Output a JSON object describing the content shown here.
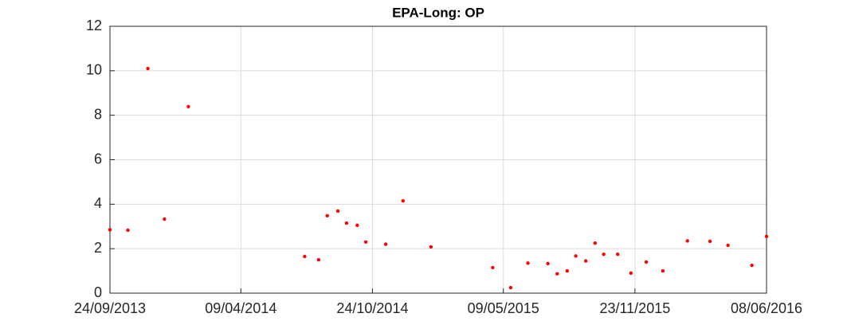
{
  "chart_data": {
    "type": "scatter",
    "title": "EPA-Long: OP",
    "series": [
      {
        "color": "#ff0000",
        "x": [
          "24/09/2013",
          "21/10/2013",
          "20/11/2013",
          "15/12/2013",
          "20/01/2014",
          "14/07/2014",
          "04/08/2014",
          "17/08/2014",
          "02/09/2014",
          "15/09/2014",
          "01/10/2014",
          "14/10/2014",
          "13/11/2014",
          "09/12/2014",
          "20/01/2015",
          "23/04/2015",
          "20/05/2015",
          "15/06/2015",
          "15/07/2015",
          "29/07/2015",
          "13/08/2015",
          "26/08/2015",
          "10/09/2015",
          "24/09/2015",
          "07/10/2015",
          "28/10/2015",
          "17/11/2015",
          "10/12/2015",
          "04/01/2016",
          "10/02/2016",
          "15/03/2016",
          "11/04/2016",
          "17/05/2016",
          "08/06/2016"
        ],
        "values": [
          2.85,
          2.83,
          10.1,
          3.33,
          8.39,
          1.65,
          1.5,
          3.48,
          3.69,
          3.15,
          3.05,
          2.3,
          2.2,
          4.15,
          2.08,
          1.15,
          0.25,
          1.35,
          1.33,
          0.87,
          1.0,
          1.67,
          1.45,
          2.25,
          1.75,
          1.75,
          0.9,
          1.4,
          1.0,
          2.35,
          2.33,
          2.15,
          1.25,
          2.55
        ]
      }
    ],
    "xlim": [
      "24/09/2013",
      "08/06/2016"
    ],
    "xticks": [
      "24/09/2013",
      "09/04/2014",
      "24/10/2014",
      "09/05/2015",
      "23/11/2015",
      "08/06/2016"
    ],
    "ylim": [
      0,
      12
    ],
    "yticks": [
      0,
      2,
      4,
      6,
      8,
      10,
      12
    ],
    "grid": true
  }
}
